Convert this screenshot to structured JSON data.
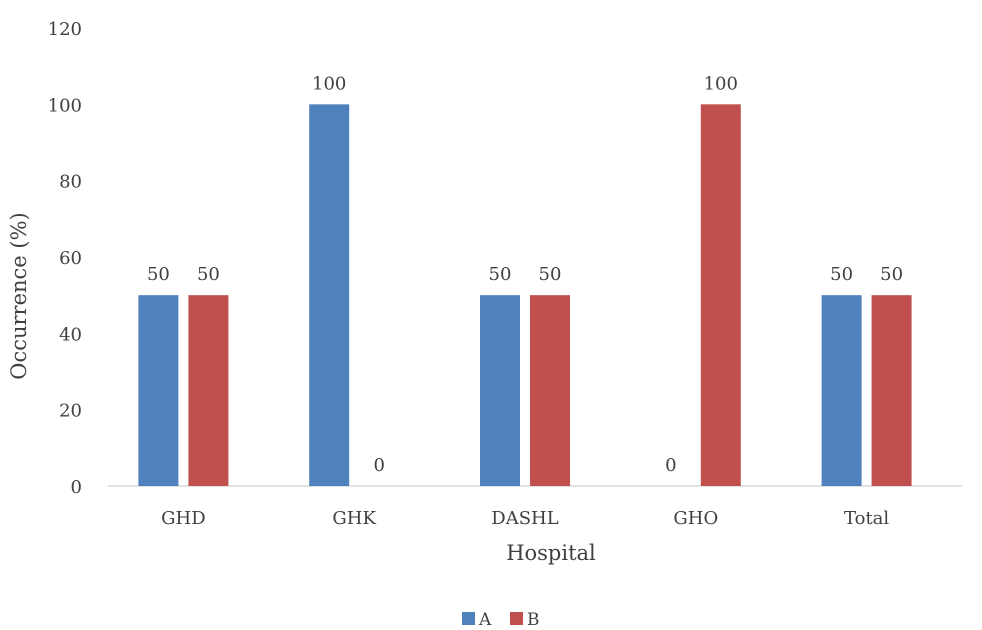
{
  "chart_data": {
    "type": "bar",
    "title": "",
    "xlabel": "Hospital",
    "ylabel": "Occurrence (%)",
    "ylim": [
      0,
      120
    ],
    "yticks": [
      0,
      20,
      40,
      60,
      80,
      100,
      120
    ],
    "categories": [
      "GHD",
      "GHK",
      "DASHL",
      "GHO",
      "Total"
    ],
    "series": [
      {
        "name": "A",
        "color": "#4f81bd",
        "values": [
          50,
          100,
          50,
          0,
          50
        ]
      },
      {
        "name": "B",
        "color": "#c0504d",
        "values": [
          50,
          0,
          50,
          100,
          50
        ]
      }
    ],
    "data_labels": true,
    "grid": false,
    "legend": "bottom"
  }
}
